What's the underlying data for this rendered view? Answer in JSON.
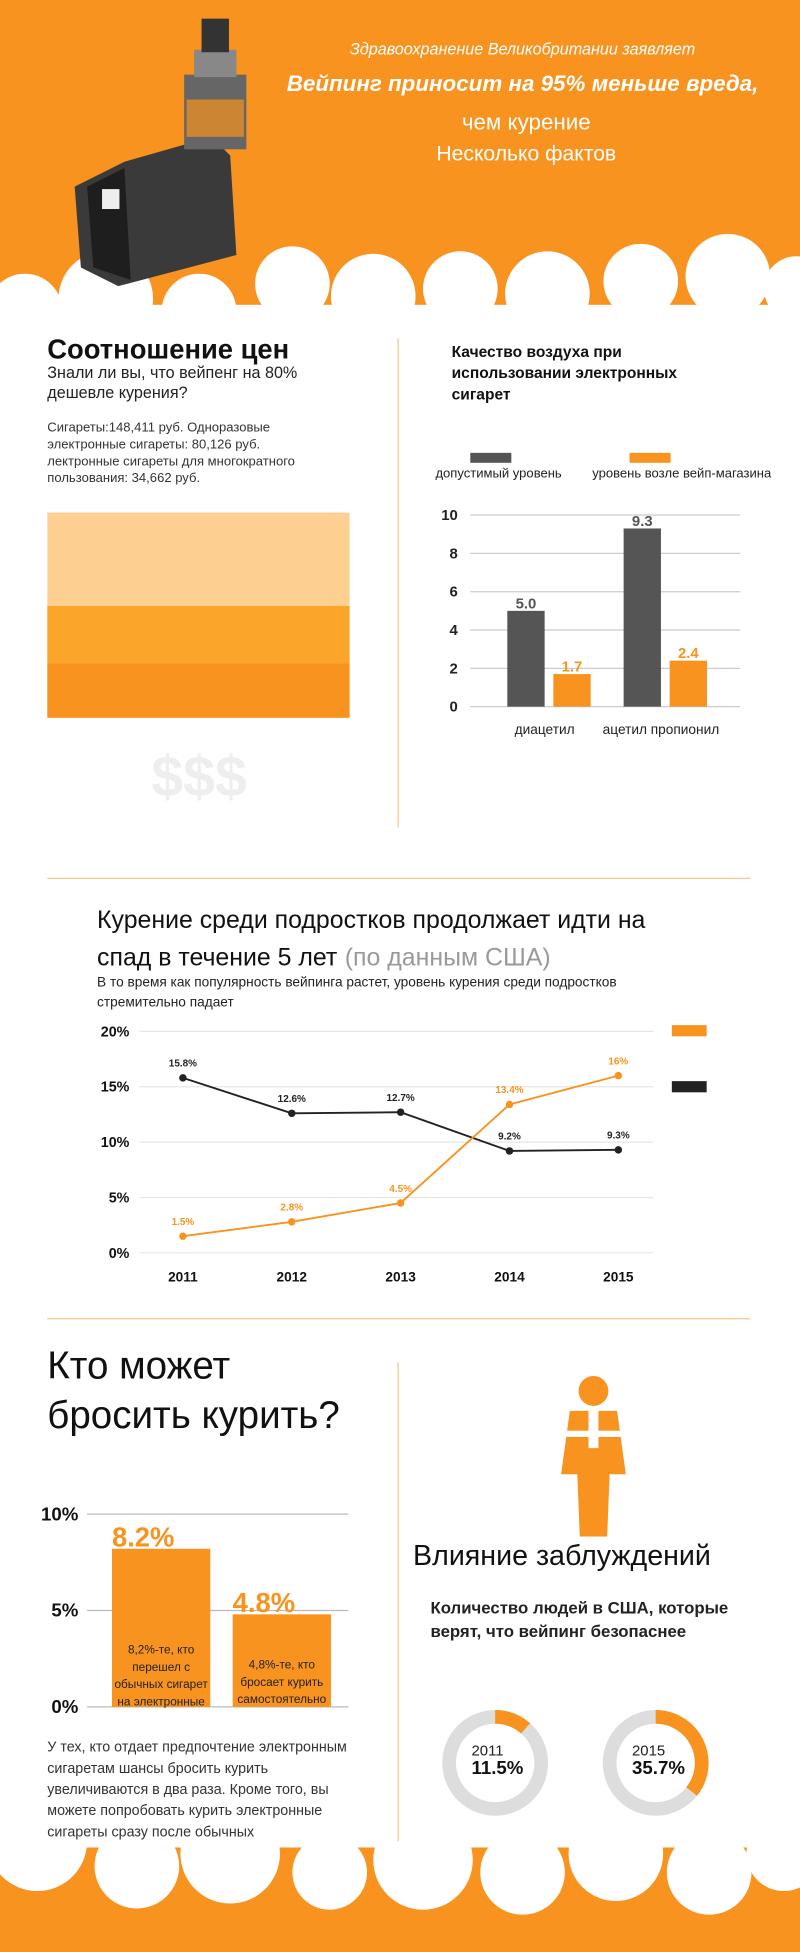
{
  "header": {
    "line1": "Здравоохранение Великобритании заявляет",
    "line2": "Вейпинг приносит на 95% меньше вреда,",
    "line3": "чем курение",
    "line4": "Несколько фактов"
  },
  "price": {
    "title": "Соотношение цен",
    "subtitle": [
      "Знали ли вы, что вейпенг на 80%",
      "дешевле курения?"
    ],
    "details": [
      "Сигареты:148,411 руб. Одноразовые",
      "электронные сигареты: 80,126 руб.",
      "лектронные сигареты для многократного",
      "пользования: 34,662 руб."
    ],
    "symbol": "$$$"
  },
  "chart_data": [
    {
      "type": "bar",
      "title": [
        "Качество воздуха при",
        "использовании электронных",
        "сигарет"
      ],
      "categories": [
        "диацетил",
        "ацетил пропионил"
      ],
      "series": [
        {
          "name": "допустимый уровень",
          "color": "#555555",
          "values": [
            5.0,
            9.3
          ],
          "value_labels": [
            "5.0",
            "9.3"
          ]
        },
        {
          "name": "уровень возле вейп-магазина",
          "color": "#f7931e",
          "values": [
            1.7,
            2.4
          ]
        }
      ],
      "ylim": [
        0,
        10
      ],
      "yticks": [
        0,
        2,
        4,
        6,
        8,
        10
      ],
      "grid": true
    },
    {
      "type": "line",
      "title": [
        "Курение среди подростков продолжает идти на",
        "спад в течение 5 лет"
      ],
      "title_note": "(по данным США)",
      "subtitle": [
        "В то время как популярность вейпинга растет, уровень курения среди подростков",
        "стремительно падает"
      ],
      "categories": [
        "2011",
        "2012",
        "2013",
        "2014",
        "2015"
      ],
      "series": [
        {
          "color": "#222222",
          "values": [
            15.8,
            12.6,
            12.7,
            9.2,
            9.3
          ],
          "value_labels": [
            "15.8%",
            "12.6%",
            "12.7%",
            "9.2%",
            "9.3%"
          ]
        },
        {
          "color": "#f7931e",
          "values": [
            1.5,
            2.8,
            4.5,
            13.4,
            16
          ],
          "value_labels": [
            "1.5%",
            "2.8%",
            "4.5%",
            "13.4%",
            "16%"
          ]
        }
      ],
      "ylim": [
        0,
        20
      ],
      "yticks": [
        {
          "value": 0,
          "label": "0%"
        },
        {
          "value": 5,
          "label": "5%"
        },
        {
          "value": 10,
          "label": "10%"
        },
        {
          "value": 15,
          "label": "15%"
        },
        {
          "value": 20,
          "label": "20%"
        }
      ],
      "grid": true
    },
    {
      "type": "bar",
      "title": [
        "Кто может",
        "бросить курить?"
      ],
      "categories": [
        [
          "8,2%-те, кто",
          "перешел с",
          "обычных сигарет",
          "на электронные"
        ],
        [
          "4,8%-те, кто",
          "бросает курить",
          "самостоятельно"
        ]
      ],
      "values": [
        8.2,
        4.8
      ],
      "value_labels": [
        "8.2%",
        "4.8%"
      ],
      "color": "#f7931e",
      "ylim": [
        0,
        10
      ],
      "yticks": [
        {
          "value": 0,
          "label": "0%"
        },
        {
          "value": 5,
          "label": "5%"
        },
        {
          "value": 10,
          "label": "10%"
        }
      ],
      "grid": true,
      "note": [
        "У тех, кто отдает предпочтение электронным",
        "сигаретам шансы бросить курить",
        "увеличиваются в два раза. Кроме того, вы",
        "можете попробовать курить электронные",
        "сигареты сразу после обычных"
      ]
    },
    {
      "type": "donut",
      "title": "Влияние заблуждений",
      "subtitle": [
        "Количество людей в США, которые",
        "верят, что вейпинг безопаснее"
      ],
      "categories": [
        "2011",
        "2015"
      ],
      "values": [
        11.5,
        35.7
      ],
      "value_labels": [
        "11.5%",
        "35.7%"
      ],
      "color": "#f7931e"
    }
  ]
}
